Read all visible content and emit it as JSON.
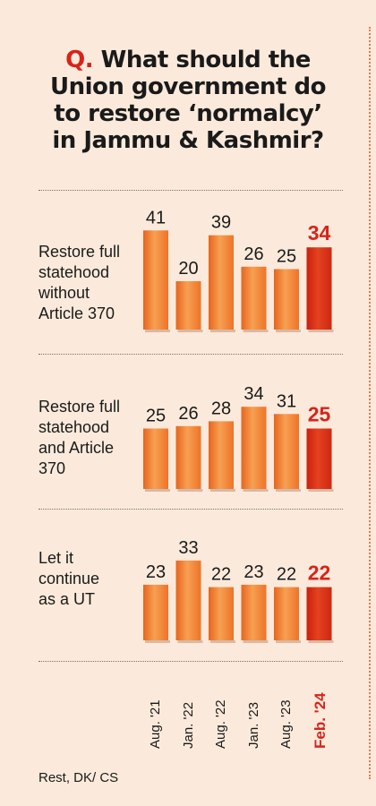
{
  "title": {
    "q": "Q.",
    "lines": [
      "What should the",
      "Union government do",
      "to restore ‘normalcy’",
      "in Jammu & Kashmir?"
    ]
  },
  "footer": "Rest, DK/ CS",
  "colors": {
    "bar": "#f07a2c",
    "bar_light": "#f7a45a",
    "highlight": "#d8231a",
    "highlight_bar": "#d83218"
  },
  "chart_data": {
    "type": "bar",
    "categories": [
      "Aug. '21",
      "Jan. '22",
      "Aug. '22",
      "Jan. '23",
      "Aug. '23",
      "Feb. '24"
    ],
    "highlight_category": "Feb. '24",
    "ylim": [
      0,
      45
    ],
    "groups": [
      {
        "label": "Restore full\nstatehood\nwithout\nArticle 370",
        "values": [
          41,
          20,
          39,
          26,
          25,
          34
        ]
      },
      {
        "label": "Restore full\nstatehood\nand Article\n370",
        "values": [
          25,
          26,
          28,
          34,
          31,
          25
        ]
      },
      {
        "label": "Let it\ncontinue\nas a UT",
        "values": [
          23,
          33,
          22,
          23,
          22,
          22
        ]
      }
    ]
  }
}
